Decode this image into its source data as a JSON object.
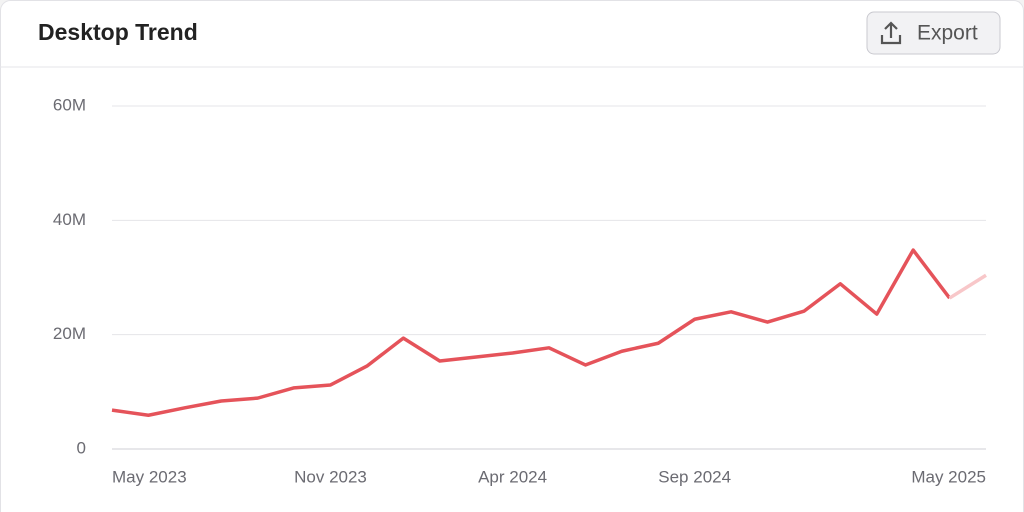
{
  "chart_data": {
    "type": "line",
    "title": "Desktop Trend",
    "export_label": "Export",
    "categories": [
      "May 2023",
      null,
      null,
      null,
      null,
      null,
      "Nov 2023",
      null,
      null,
      null,
      null,
      "Apr 2024",
      null,
      null,
      null,
      null,
      "Sep 2024",
      null,
      null,
      null,
      null,
      null,
      null,
      null,
      "May 2025"
    ],
    "series": [
      {
        "name": "Desktop",
        "color": "#e5535a",
        "incomplete_color": "#f8c7c9",
        "incomplete_from": 23,
        "values": [
          6800000,
          5900000,
          7200000,
          8400000,
          8900000,
          10700000,
          11200000,
          14500000,
          19400000,
          15400000,
          16100000,
          16800000,
          17700000,
          14700000,
          17100000,
          18500000,
          22700000,
          24000000,
          22200000,
          24100000,
          28900000,
          23600000,
          34800000,
          26400000,
          30400000
        ]
      }
    ],
    "ylim": [
      0,
      60000000
    ],
    "yticks": [
      0,
      {
        "value": 20000000,
        "label": "20M"
      },
      {
        "value": 40000000,
        "label": "40M"
      },
      {
        "value": 60000000,
        "label": "60M"
      }
    ],
    "grid": true
  }
}
